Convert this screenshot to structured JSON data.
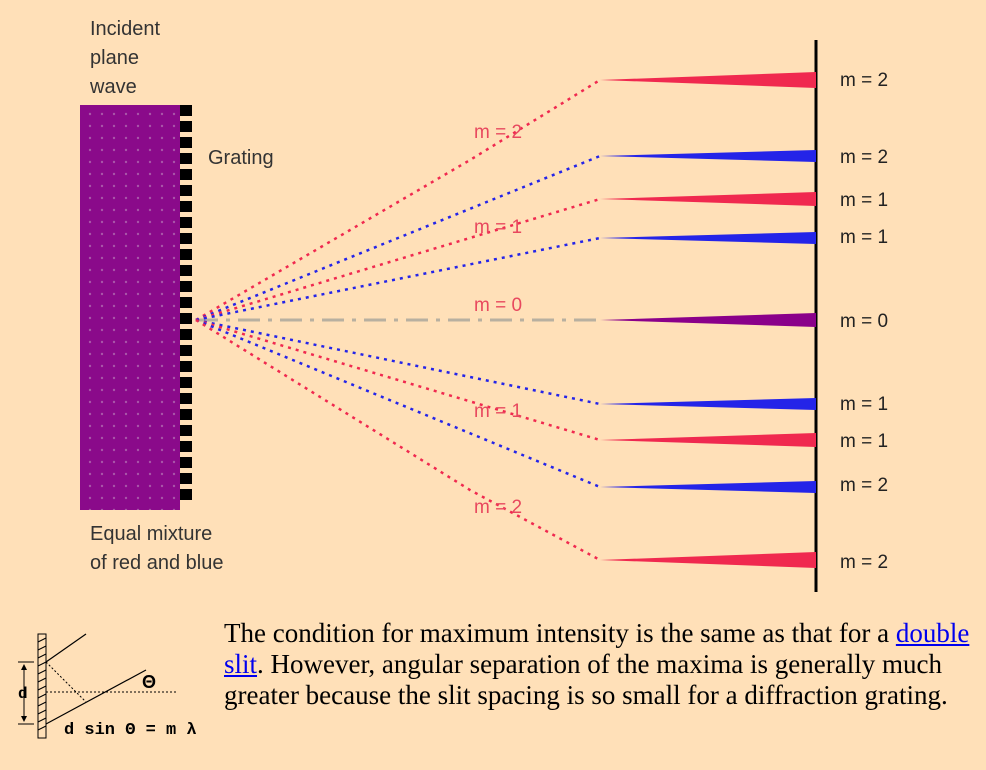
{
  "labels": {
    "incident": [
      "Incident",
      "plane",
      "wave"
    ],
    "grating": "Grating",
    "mixture": [
      "Equal mixture",
      "of red and blue"
    ],
    "beam_orders": {
      "upper_m2": "m = 2",
      "upper_m1": "m = 1",
      "center_m0": "m = 0",
      "lower_m1": "m = 1",
      "lower_m2": "m = 2"
    },
    "screen_orders": [
      "m = 2",
      "m = 2",
      "m = 1",
      "m = 1",
      "m = 0",
      "m = 1",
      "m = 1",
      "m = 2",
      "m = 2"
    ]
  },
  "colors": {
    "background": "#ffe0b8",
    "red": "#f0294f",
    "blue": "#2424e8",
    "purple": "#8a008a",
    "label_red": "#e8485e"
  },
  "formula": {
    "d": "d",
    "theta": "Θ",
    "equation": "d sin Θ = m λ"
  },
  "description": {
    "before_link": "The condition for maximum intensity is the same as that for a ",
    "link_text": "double slit",
    "after_link": ". However, angular separation of the maxima is generally much greater because the slit spacing is so small for a diffraction grating."
  }
}
